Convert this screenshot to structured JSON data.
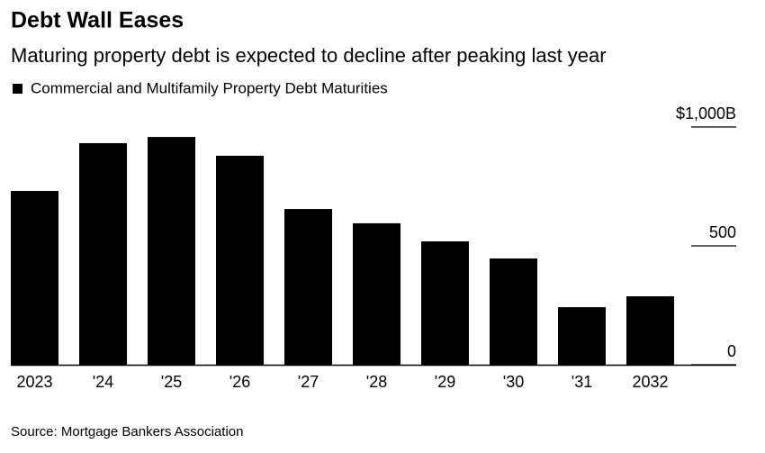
{
  "chart_data": {
    "type": "bar",
    "title": "Debt Wall Eases",
    "subtitle": "Maturing property debt is expected to decline after peaking last year",
    "series": [
      {
        "name": "Commercial and Multifamily Property Debt Maturities",
        "color": "#000000",
        "values": [
          731,
          932,
          958,
          879,
          655,
          595,
          519,
          447,
          242,
          288
        ]
      }
    ],
    "categories": [
      "2023",
      "'24",
      "'25",
      "'26",
      "'27",
      "'28",
      "'29",
      "'30",
      "'31",
      "2032"
    ],
    "ylim": [
      0,
      1000
    ],
    "yticks": [
      0,
      500,
      {
        "value": 1000,
        "label": "$1,000B"
      }
    ],
    "source": "Source: Mortgage Bankers Association"
  }
}
